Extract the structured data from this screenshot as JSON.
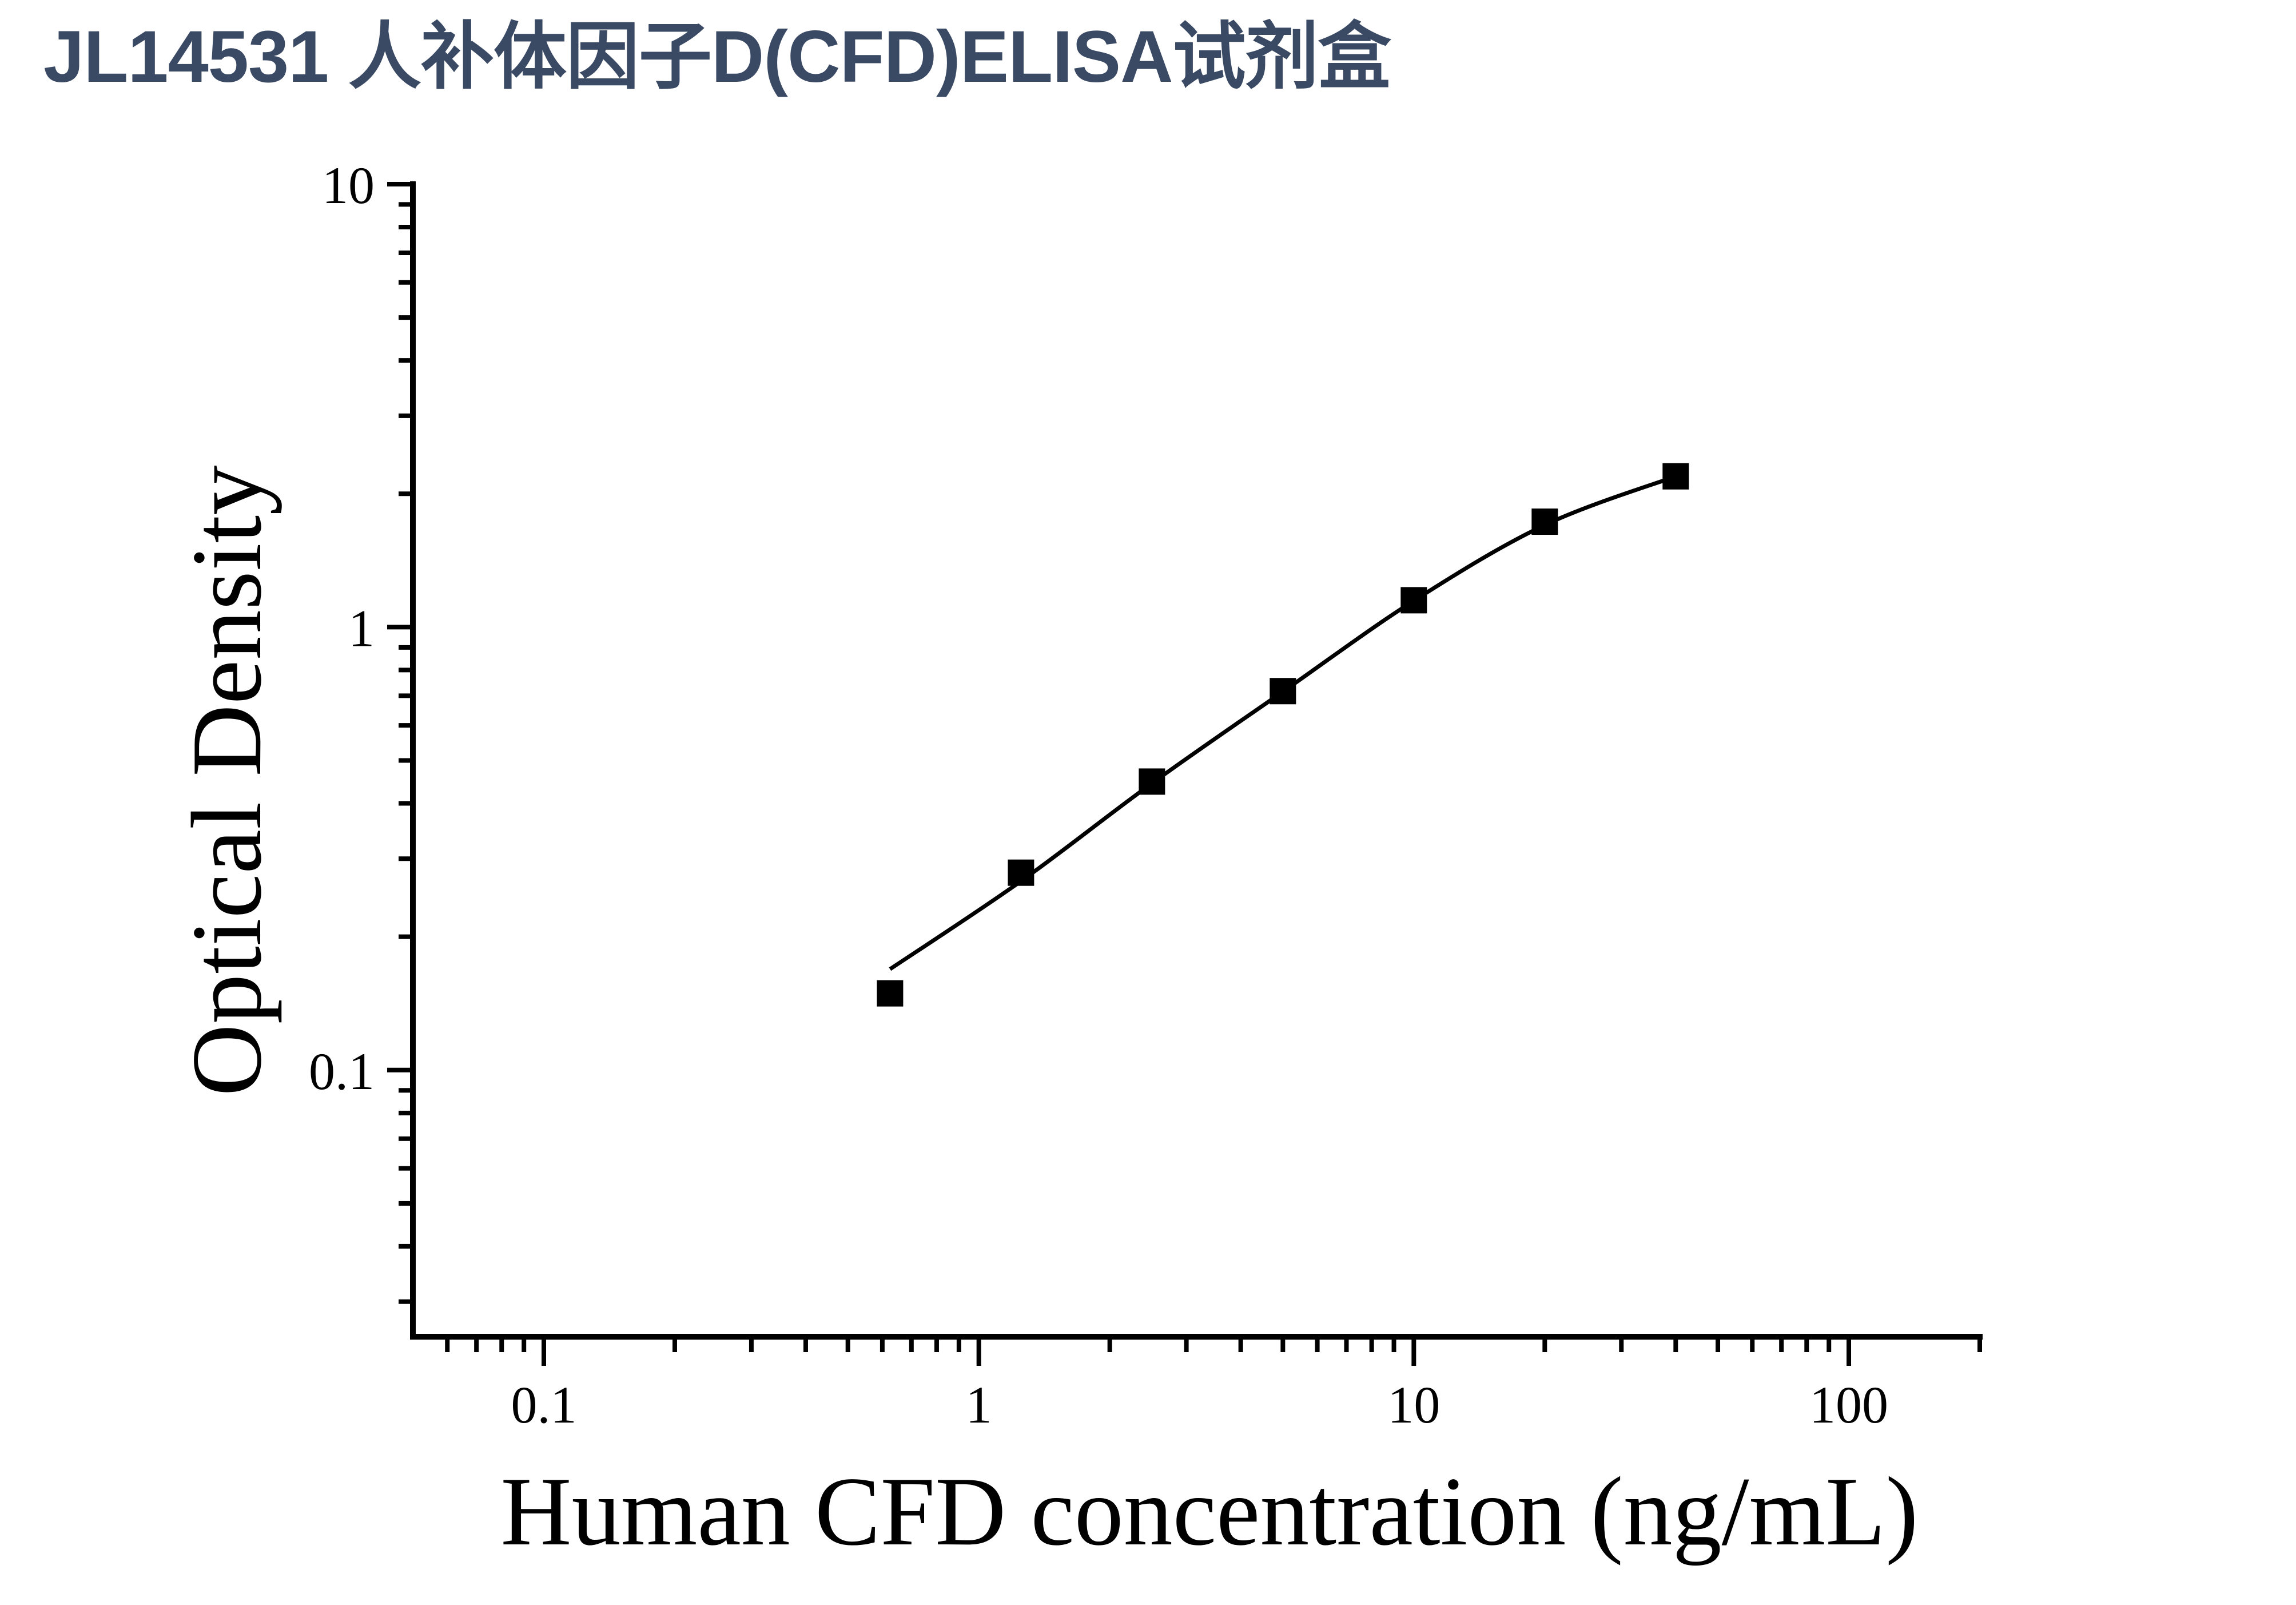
{
  "title": "JL14531 人补体因子D(CFD)ELISA试剂盒",
  "colors": {
    "title_text": "#3b4a64",
    "axis": "#000000",
    "marker": "#000000",
    "curve": "#000000",
    "background": "#ffffff"
  },
  "chart_data": {
    "type": "scatter",
    "title": "JL14531 人补体因子D(CFD)ELISA试剂盒",
    "xlabel": "Human CFD concentration (ng/mL)",
    "ylabel": "Optical Density",
    "x_scale": "log",
    "y_scale": "log",
    "xlim": [
      0.05,
      200
    ],
    "ylim": [
      0.025,
      10
    ],
    "grid": false,
    "legend": "none",
    "marker_shape": "filled-square",
    "x_major_ticks": [
      {
        "value": 0.1,
        "label": "0.1"
      },
      {
        "value": 1,
        "label": "1"
      },
      {
        "value": 10,
        "label": "10"
      },
      {
        "value": 100,
        "label": "100"
      }
    ],
    "x_minor_ticks": [
      0.06,
      0.07,
      0.08,
      0.09,
      0.2,
      0.3,
      0.4,
      0.5,
      0.6,
      0.7,
      0.8,
      0.9,
      2,
      3,
      4,
      5,
      6,
      7,
      8,
      9,
      20,
      30,
      40,
      50,
      60,
      70,
      80,
      90,
      200
    ],
    "y_major_ticks": [
      {
        "value": 10,
        "label": "10"
      },
      {
        "value": 1,
        "label": "1"
      },
      {
        "value": 0.1,
        "label": "0.1"
      }
    ],
    "y_minor_ticks": [
      0.03,
      0.04,
      0.05,
      0.06,
      0.07,
      0.08,
      0.09,
      0.2,
      0.3,
      0.4,
      0.5,
      0.6,
      0.7,
      0.8,
      0.9,
      2,
      3,
      4,
      5,
      6,
      7,
      8,
      9
    ],
    "series": [
      {
        "name": "standard-points",
        "x": [
          0.625,
          1.25,
          2.5,
          5,
          10,
          20,
          40
        ],
        "y": [
          0.149,
          0.279,
          0.448,
          0.717,
          1.15,
          1.73,
          2.19
        ]
      }
    ],
    "fit_curve": {
      "name": "4pl-fit",
      "x": [
        0.625,
        1.25,
        2.5,
        5,
        10,
        20,
        40
      ],
      "y": [
        0.169,
        0.267,
        0.444,
        0.715,
        1.147,
        1.7,
        2.19
      ]
    }
  }
}
